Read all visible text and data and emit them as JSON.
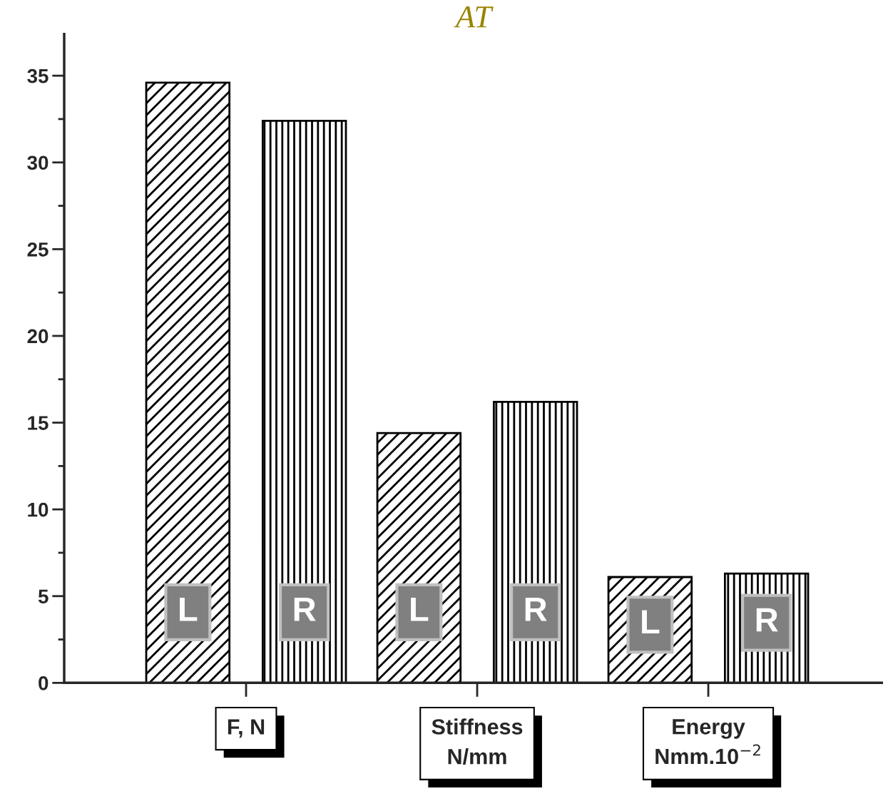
{
  "chart_data": {
    "type": "bar",
    "title": "AT",
    "categories": [
      "F, N",
      "Stiffness\nN/mm",
      "Energy\nNmm.10$^{−2}$"
    ],
    "series": [
      {
        "name": "L",
        "color": "#000000",
        "values": [
          34.6,
          14.4,
          6.1
        ]
      },
      {
        "name": "R",
        "color": "#000000",
        "values": [
          32.4,
          16.2,
          6.3
        ]
      }
    ],
    "ylim": [
      0,
      37.4
    ],
    "yticks": [
      0,
      5,
      10,
      15,
      20,
      25,
      30,
      35
    ],
    "grid": false,
    "legend": false
  }
}
